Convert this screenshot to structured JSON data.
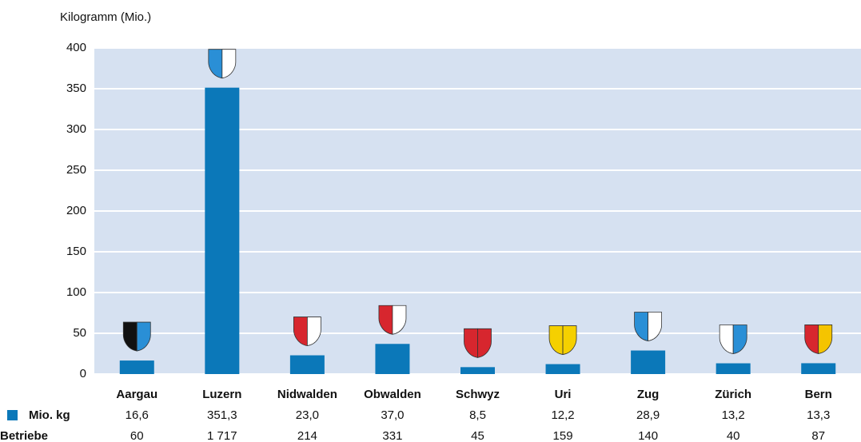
{
  "chart_data": {
    "type": "bar",
    "y_label": "Kilogramm (Mio.)",
    "categories": [
      "Aargau",
      "Luzern",
      "Nidwalden",
      "Obwalden",
      "Schwyz",
      "Uri",
      "Zug",
      "Zürich",
      "Bern"
    ],
    "series": [
      {
        "name": "Mio. kg",
        "color": "#0b78b9",
        "values": [
          16.6,
          351.3,
          23.0,
          37.0,
          8.5,
          12.2,
          28.9,
          13.2,
          13.3
        ],
        "value_labels": [
          "16,6",
          "351,3",
          "23,0",
          "37,0",
          "8,5",
          "12,2",
          "28,9",
          "13,2",
          "13,3"
        ]
      }
    ],
    "table_rows": [
      {
        "label": "Betriebe",
        "cells": [
          "60",
          "1 717",
          "214",
          "331",
          "45",
          "159",
          "140",
          "40",
          "87"
        ]
      }
    ],
    "ylim": [
      0,
      400
    ],
    "yticks": [
      0,
      50,
      100,
      150,
      200,
      250,
      300,
      350,
      400
    ],
    "grid": true
  }
}
